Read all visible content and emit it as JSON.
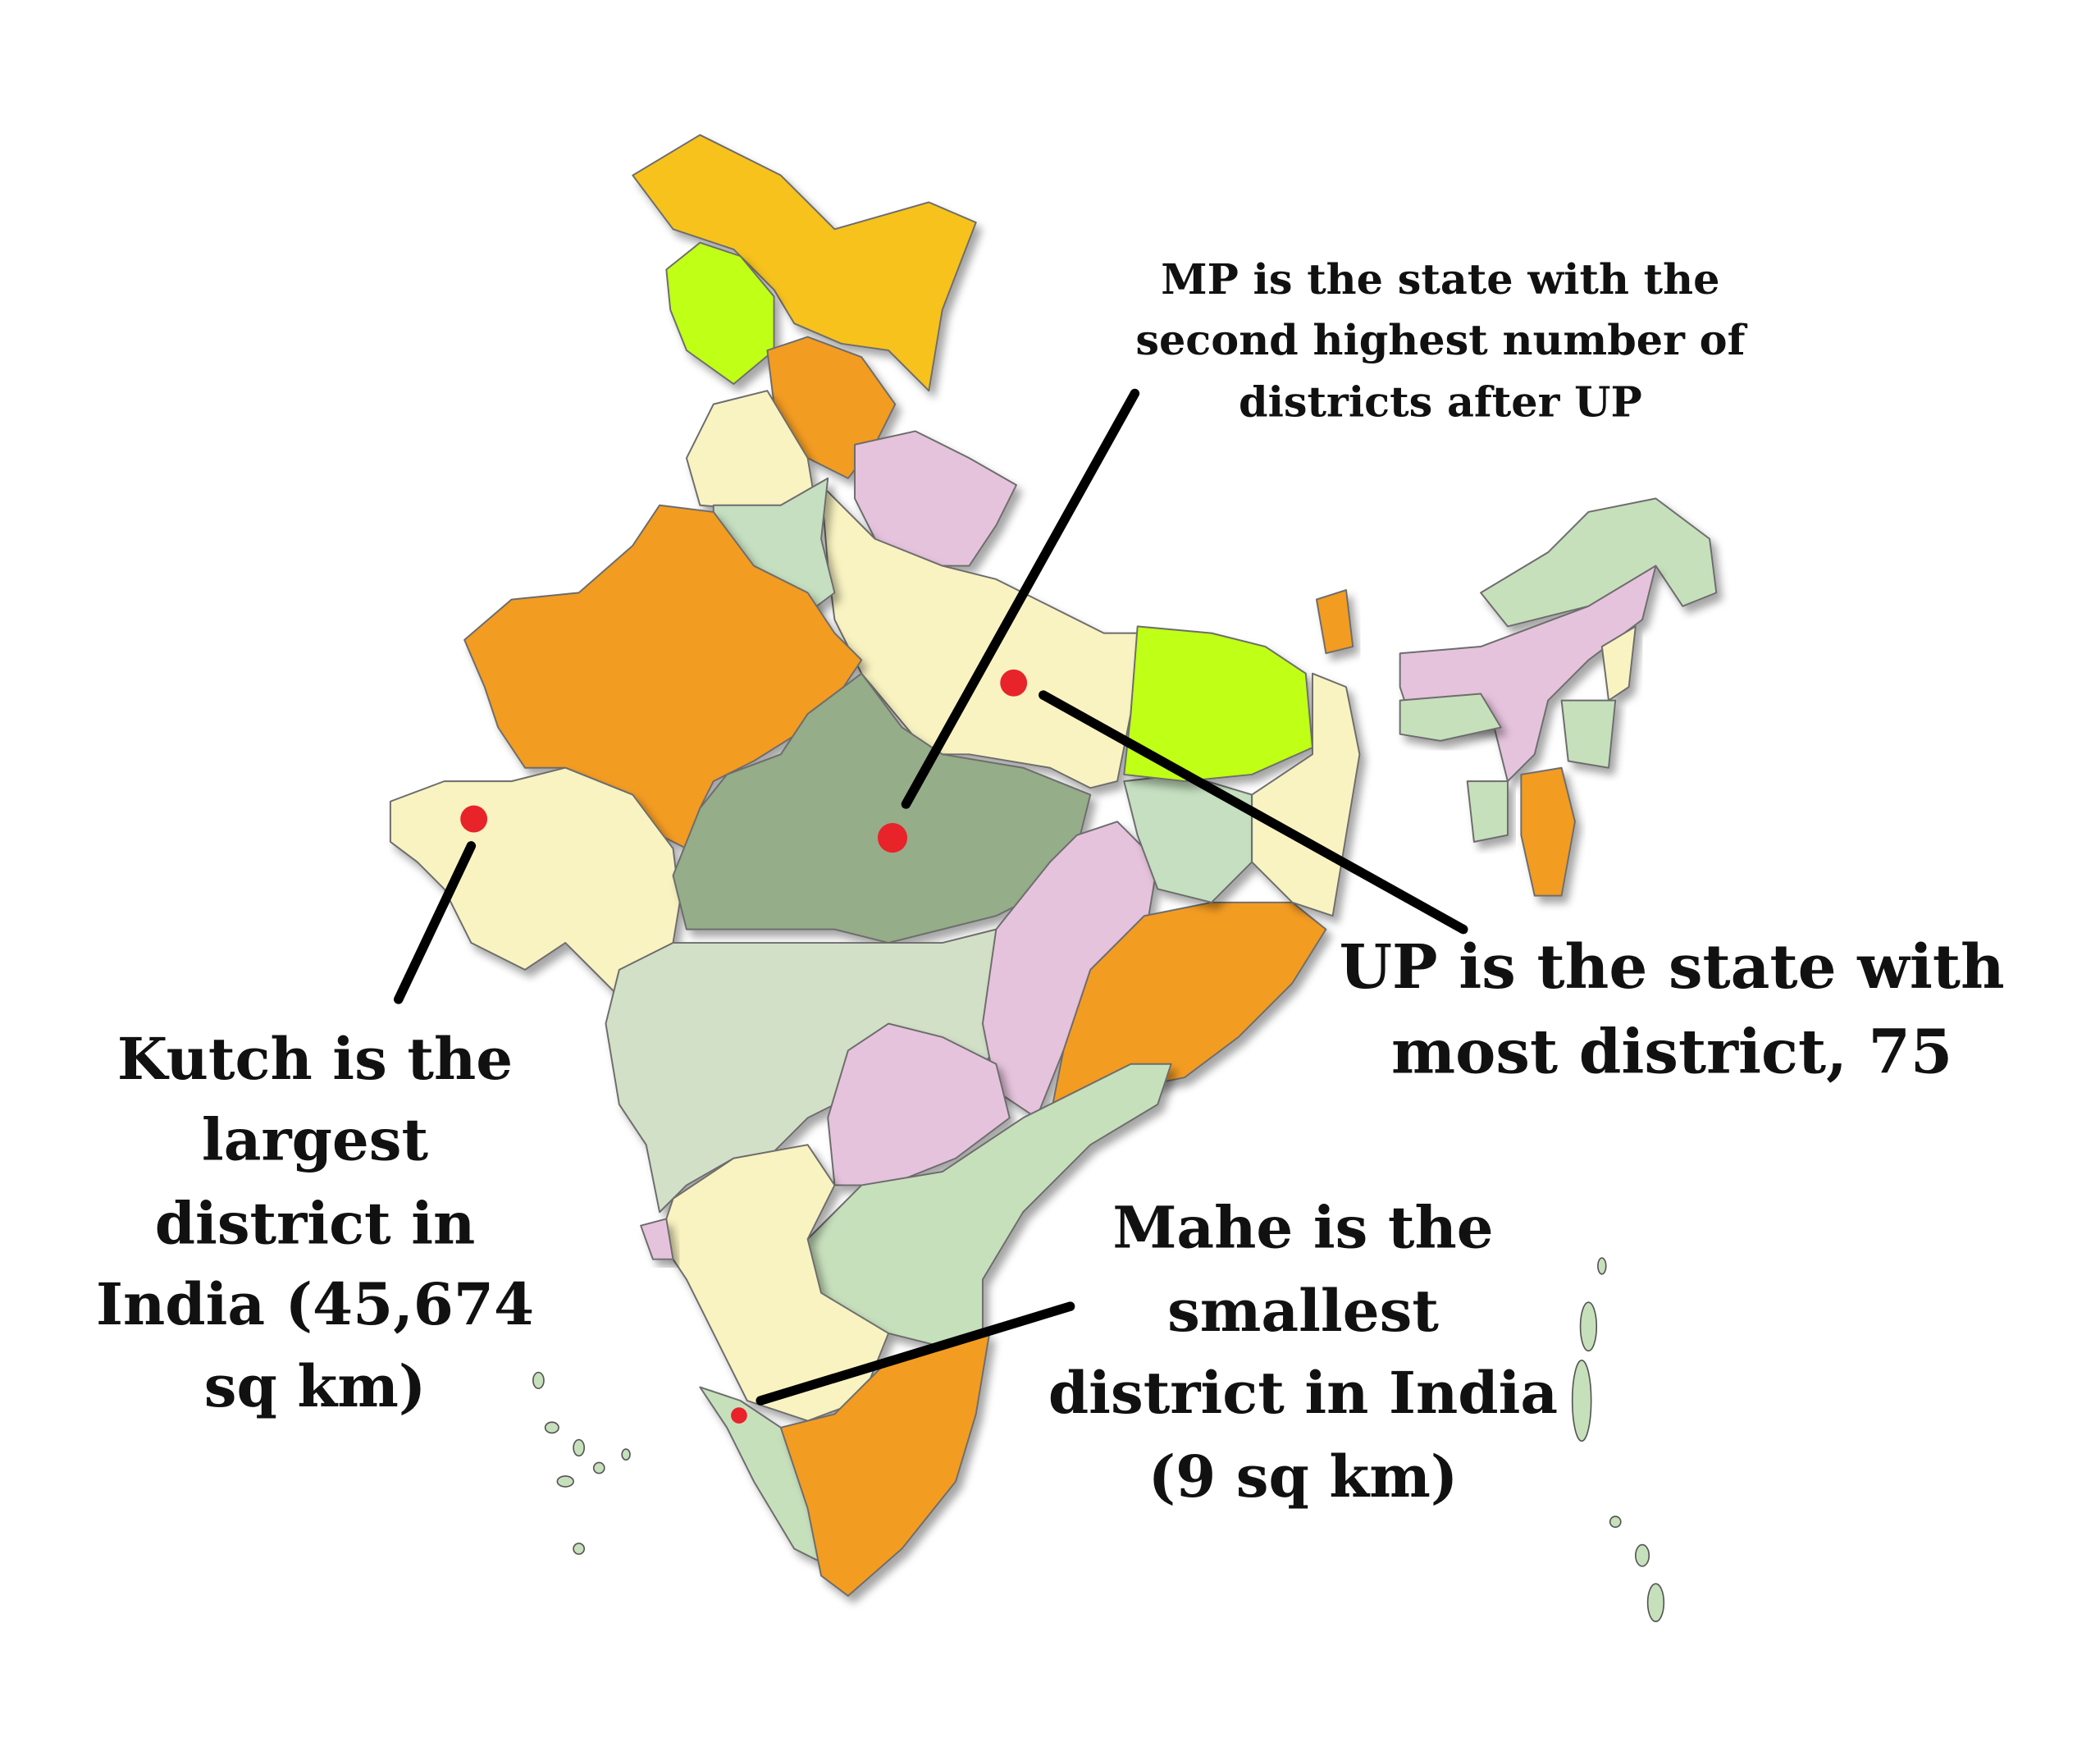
{
  "annotations": [
    {
      "lines": [
        "MP is the state with the",
        "second highest number of",
        "districts after UP"
      ]
    },
    {
      "lines": [
        "UP is the state with",
        "most district, 75"
      ]
    },
    {
      "lines": [
        "Kutch is the",
        "largest",
        "district in",
        "India (45,674",
        "sq km)"
      ]
    },
    {
      "lines": [
        "Mahe is the",
        "smallest",
        "district in India",
        "(9 sq km)"
      ]
    }
  ]
}
